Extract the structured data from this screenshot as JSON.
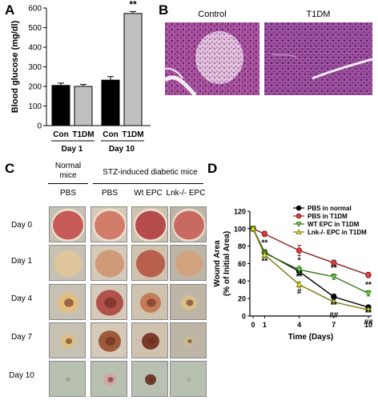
{
  "panels": {
    "A": "A",
    "B": "B",
    "C": "C",
    "D": "D"
  },
  "panel_a": {
    "chart_data": {
      "type": "bar",
      "categories": [
        "Con",
        "T1DM",
        "Con",
        "T1DM"
      ],
      "groups": [
        "Day 1",
        "Day 10"
      ],
      "values": [
        205,
        200,
        232,
        572
      ],
      "errors": [
        12,
        10,
        18,
        10
      ],
      "colors": [
        "#000000",
        "#c0c0c0",
        "#000000",
        "#c0c0c0"
      ],
      "ylabel": "Blood glucose (mg/dl)",
      "ylim": [
        0,
        600
      ],
      "yticks": [
        "0",
        "100",
        "200",
        "300",
        "400",
        "500",
        "600"
      ],
      "annotation": "**"
    }
  },
  "panel_b": {
    "labels": [
      "Control",
      "T1DM"
    ]
  },
  "panel_c": {
    "group_labels": {
      "normal": "Normal mice",
      "diabetic": "STZ-induced diabetic mice"
    },
    "columns": [
      "PBS",
      "PBS",
      "Wt EPC",
      "Lnk-/- EPC"
    ],
    "rows": [
      "Day 0",
      "Day 1",
      "Day 4",
      "Day 7",
      "Day 10"
    ]
  },
  "panel_d": {
    "chart_data": {
      "type": "line",
      "x": [
        0,
        1,
        4,
        7,
        10
      ],
      "xticks": [
        "0",
        "1",
        "4",
        "7",
        "10"
      ],
      "xlabel": "Time (Days)",
      "ylabel_line1": "Wound Area",
      "ylabel_line2": "(% of Initial Area)",
      "ylim": [
        0,
        120
      ],
      "yticks": [
        "0",
        "20",
        "40",
        "60",
        "80",
        "100",
        "120"
      ],
      "legend_position": "top-right",
      "series": [
        {
          "name": "PBS in normal",
          "values": [
            100,
            73,
            51,
            22,
            10
          ],
          "errors": [
            3,
            3,
            4,
            3,
            2
          ],
          "marker": "circle",
          "fill": "#000000",
          "stroke": "#000000"
        },
        {
          "name": "PBS in T1DM",
          "values": [
            100,
            94,
            75,
            61,
            47
          ],
          "errors": [
            3,
            3,
            6,
            3,
            3
          ],
          "marker": "circle",
          "fill": "#d84040",
          "stroke": "#8a2020"
        },
        {
          "name": "WT EPC in T1DM",
          "values": [
            100,
            72,
            53,
            45,
            26
          ],
          "errors": [
            3,
            4,
            4,
            3,
            3
          ],
          "marker": "triangle-down",
          "fill": "#7cd04a",
          "stroke": "#2f7a1a"
        },
        {
          "name": "Lnk-/- EPC in T1DM",
          "values": [
            100,
            70,
            36,
            16,
            7
          ],
          "errors": [
            3,
            3,
            3,
            2,
            2
          ],
          "marker": "triangle-up",
          "fill": "#f3f03a",
          "stroke": "#7a7a10"
        }
      ],
      "annotations": [
        {
          "x": 1,
          "y": 81,
          "text": "**"
        },
        {
          "x": 1,
          "y": 60,
          "text": "**"
        },
        {
          "x": 4,
          "y": 61,
          "text": "*"
        },
        {
          "x": 4,
          "y": 42,
          "text": "**"
        },
        {
          "x": 4,
          "y": 25,
          "text": "#"
        },
        {
          "x": 7,
          "y": 52,
          "text": "**"
        },
        {
          "x": 7,
          "y": 10,
          "text": "**"
        },
        {
          "x": 7,
          "y": -2,
          "text": "##"
        },
        {
          "x": 10,
          "y": 33,
          "text": "**"
        },
        {
          "x": 10,
          "y": 1,
          "text": "**"
        },
        {
          "x": 10,
          "y": -10,
          "text": "##"
        }
      ]
    }
  }
}
